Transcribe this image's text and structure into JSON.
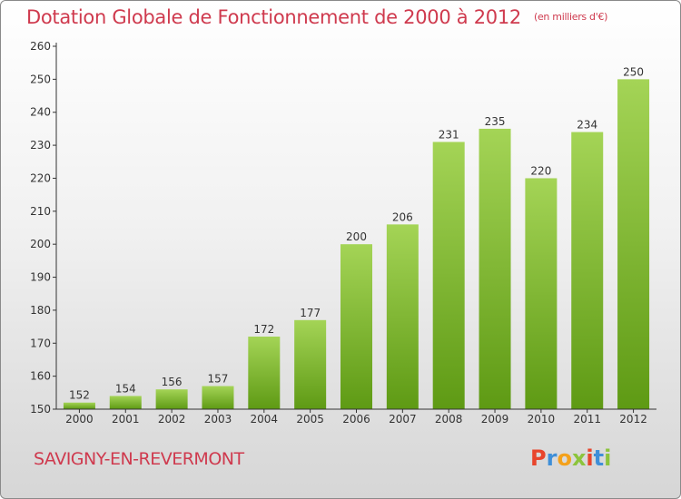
{
  "header": {
    "title": "Dotation Globale de Fonctionnement de 2000 à 2012",
    "unit": "(en milliers d'€)"
  },
  "footer": {
    "commune": "SAVIGNY-EN-REVERMONT",
    "logo_letters": [
      "P",
      "r",
      "o",
      "x",
      "i",
      "t",
      "i"
    ],
    "logo_colors": [
      "#e8452c",
      "#3f8fd8",
      "#f4a11b",
      "#8cc43c",
      "#e8452c",
      "#3f8fd8",
      "#8cc43c"
    ]
  },
  "colors": {
    "bar_light": "#a4d456",
    "bar_dark": "#5e9a14",
    "title": "#cf3a4e",
    "axis": "#333333"
  },
  "chart_data": {
    "type": "bar",
    "title": "Dotation Globale de Fonctionnement de 2000 à 2012",
    "subtitle": "(en milliers d'€)",
    "categories": [
      "2000",
      "2001",
      "2002",
      "2003",
      "2004",
      "2005",
      "2006",
      "2007",
      "2008",
      "2009",
      "2010",
      "2011",
      "2012"
    ],
    "values": [
      152,
      154,
      156,
      157,
      172,
      177,
      200,
      206,
      231,
      235,
      220,
      234,
      250
    ],
    "ylim": [
      150,
      260
    ],
    "yticks": [
      150,
      160,
      170,
      180,
      190,
      200,
      210,
      220,
      230,
      240,
      250,
      260
    ],
    "xlabel": "",
    "ylabel": "",
    "grid": false,
    "data_labels": true
  }
}
